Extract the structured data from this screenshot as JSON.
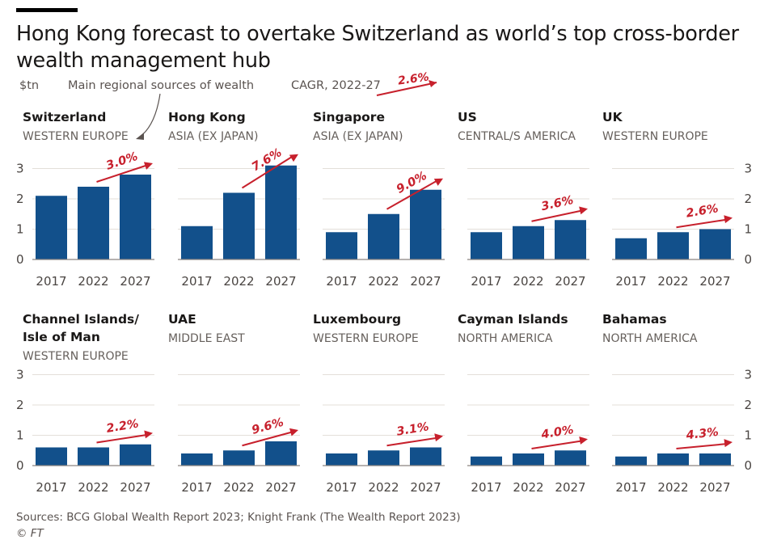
{
  "header": {
    "title": "Hong Kong forecast to overtake Switzerland as world’s top cross-border wealth management hub",
    "unit": "$tn",
    "regional_note": "Main regional sources of wealth",
    "cagr_label": "CAGR, 2022-27",
    "cagr_example": "2.6%"
  },
  "footer": {
    "source": "Sources: BCG Global Wealth Report 2023; Knight Frank (The Wealth Report 2023)",
    "credit": "© FT"
  },
  "colors": {
    "bar": "#12508b",
    "accent": "#c7202c",
    "axis": "#8a8480",
    "grid": "#e3dfd9"
  },
  "chart_data": [
    {
      "type": "bar",
      "title": "Switzerland",
      "subtitle": "WESTERN EUROPE",
      "categories": [
        "2017",
        "2022",
        "2027"
      ],
      "values": [
        2.1,
        2.4,
        2.8
      ],
      "cagr": "3.0%",
      "ylim": [
        0,
        3
      ],
      "yticks": [
        "0",
        "1",
        "2",
        "3"
      ]
    },
    {
      "type": "bar",
      "title": "Hong Kong",
      "subtitle": "ASIA (EX JAPAN)",
      "categories": [
        "2017",
        "2022",
        "2027"
      ],
      "values": [
        1.1,
        2.2,
        3.1
      ],
      "cagr": "7.6%",
      "ylim": [
        0,
        3
      ]
    },
    {
      "type": "bar",
      "title": "Singapore",
      "subtitle": "ASIA (EX JAPAN)",
      "categories": [
        "2017",
        "2022",
        "2027"
      ],
      "values": [
        0.9,
        1.5,
        2.3
      ],
      "cagr": "9.0%",
      "ylim": [
        0,
        3
      ]
    },
    {
      "type": "bar",
      "title": "US",
      "subtitle": "CENTRAL/S AMERICA",
      "categories": [
        "2017",
        "2022",
        "2027"
      ],
      "values": [
        0.9,
        1.1,
        1.3
      ],
      "cagr": "3.6%",
      "ylim": [
        0,
        3
      ]
    },
    {
      "type": "bar",
      "title": "UK",
      "subtitle": "WESTERN EUROPE",
      "categories": [
        "2017",
        "2022",
        "2027"
      ],
      "values": [
        0.7,
        0.9,
        1.0
      ],
      "cagr": "2.6%",
      "ylim": [
        0,
        3
      ],
      "yticks": [
        "0",
        "1",
        "2",
        "3"
      ]
    },
    {
      "type": "bar",
      "title": "Channel Islands/\nIsle of Man",
      "subtitle": "WESTERN EUROPE",
      "categories": [
        "2017",
        "2022",
        "2027"
      ],
      "values": [
        0.6,
        0.6,
        0.7
      ],
      "cagr": "2.2%",
      "ylim": [
        0,
        3
      ],
      "yticks": [
        "0",
        "1",
        "2",
        "3"
      ]
    },
    {
      "type": "bar",
      "title": "UAE",
      "subtitle": "MIDDLE EAST",
      "categories": [
        "2017",
        "2022",
        "2027"
      ],
      "values": [
        0.4,
        0.5,
        0.8
      ],
      "cagr": "9.6%",
      "ylim": [
        0,
        3
      ]
    },
    {
      "type": "bar",
      "title": "Luxembourg",
      "subtitle": "WESTERN EUROPE",
      "categories": [
        "2017",
        "2022",
        "2027"
      ],
      "values": [
        0.4,
        0.5,
        0.6
      ],
      "cagr": "3.1%",
      "ylim": [
        0,
        3
      ]
    },
    {
      "type": "bar",
      "title": "Cayman Islands",
      "subtitle": "NORTH AMERICA",
      "categories": [
        "2017",
        "2022",
        "2027"
      ],
      "values": [
        0.3,
        0.4,
        0.5
      ],
      "cagr": "4.0%",
      "ylim": [
        0,
        3
      ]
    },
    {
      "type": "bar",
      "title": "Bahamas",
      "subtitle": "NORTH AMERICA",
      "categories": [
        "2017",
        "2022",
        "2027"
      ],
      "values": [
        0.3,
        0.4,
        0.4
      ],
      "cagr": "4.3%",
      "ylim": [
        0,
        3
      ],
      "yticks": [
        "0",
        "1",
        "2",
        "3"
      ]
    }
  ]
}
